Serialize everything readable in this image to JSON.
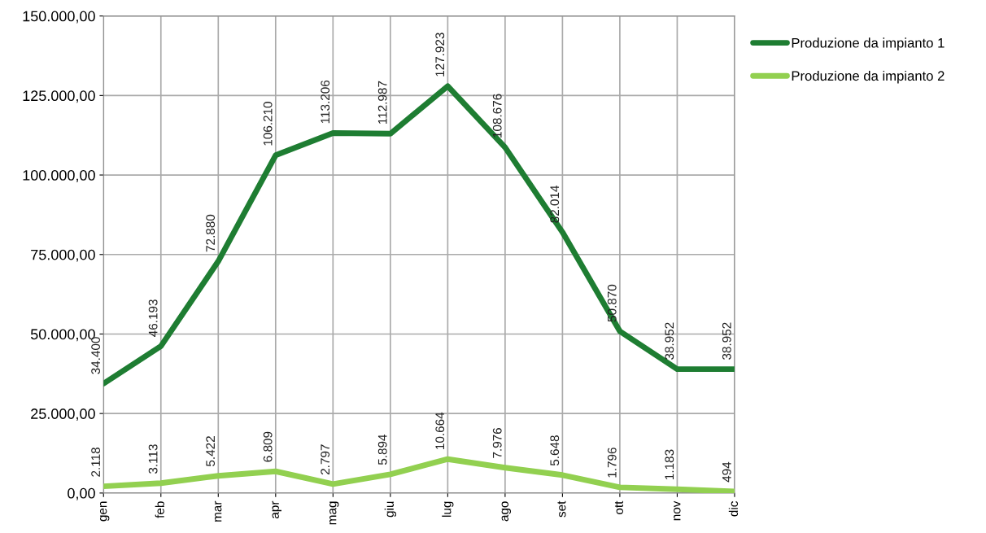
{
  "chart_data": {
    "type": "line",
    "categories": [
      "gen",
      "feb",
      "mar",
      "apr",
      "mag",
      "giu",
      "lug",
      "ago",
      "set",
      "ott",
      "nov",
      "dic"
    ],
    "series": [
      {
        "name": "Produzione da impianto 1",
        "color": "#1e7d32",
        "values": [
          34400,
          46193,
          72880,
          106210,
          113206,
          112987,
          127923,
          108676,
          82014,
          50870,
          38952,
          38952
        ],
        "value_labels": [
          "34.400",
          "46.193",
          "72.880",
          "106.210",
          "113.206",
          "112.987",
          "127.923",
          "108.676",
          "82.014",
          "50.870",
          "38.952",
          "38.952"
        ]
      },
      {
        "name": "Produzione da impianto 2",
        "color": "#92d050",
        "values": [
          2118,
          3113,
          5422,
          6809,
          2797,
          5894,
          10664,
          7976,
          5648,
          1796,
          1183,
          494
        ],
        "value_labels": [
          "2.118",
          "3.113",
          "5.422",
          "6.809",
          "2.797",
          "5.894",
          "10.664",
          "7.976",
          "5.648",
          "1.796",
          "1.183",
          "494"
        ]
      }
    ],
    "ylim": [
      0,
      150000
    ],
    "yticks": [
      {
        "value": 0,
        "label": "0,00"
      },
      {
        "value": 25000,
        "label": "25.000,00"
      },
      {
        "value": 50000,
        "label": "50.000,00"
      },
      {
        "value": 75000,
        "label": "75.000,00"
      },
      {
        "value": 100000,
        "label": "100.000,00"
      },
      {
        "value": 125000,
        "label": "125.000,00"
      },
      {
        "value": 150000,
        "label": "150.000,00"
      }
    ],
    "grid": true,
    "legend": "right",
    "marker": "none",
    "line_style": "solid"
  }
}
